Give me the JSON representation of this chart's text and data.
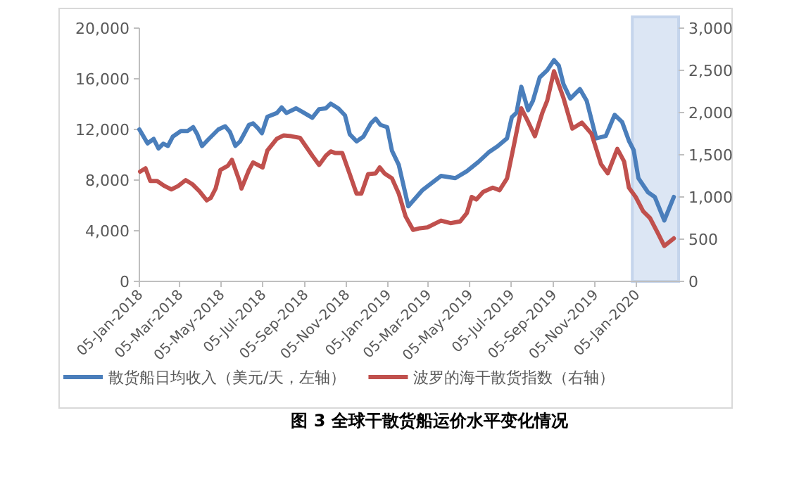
{
  "chart_data": {
    "type": "line",
    "title": "图 3 全球干散货船运价水平变化情况",
    "legend": "bottom",
    "grid": false,
    "marker": "none",
    "line_style": "solid",
    "xlim": [
      "2018-01-05",
      "2020-03-07"
    ],
    "xticks": [
      {
        "value": "2018-01-05",
        "label": "05-Jan-2018"
      },
      {
        "value": "2018-03-05",
        "label": "05-Mar-2018"
      },
      {
        "value": "2018-05-05",
        "label": "05-May-2018"
      },
      {
        "value": "2018-07-05",
        "label": "05-Jul-2018"
      },
      {
        "value": "2018-09-05",
        "label": "05-Sep-2018"
      },
      {
        "value": "2018-11-05",
        "label": "05-Nov-2018"
      },
      {
        "value": "2019-01-05",
        "label": "05-Jan-2019"
      },
      {
        "value": "2019-03-05",
        "label": "05-Mar-2019"
      },
      {
        "value": "2019-05-05",
        "label": "05-May-2019"
      },
      {
        "value": "2019-07-05",
        "label": "05-Jul-2019"
      },
      {
        "value": "2019-09-05",
        "label": "05-Sep-2019"
      },
      {
        "value": "2019-11-05",
        "label": "05-Nov-2019"
      },
      {
        "value": "2020-01-05",
        "label": "05-Jan-2020"
      }
    ],
    "ylim": [
      0,
      20000
    ],
    "yticks": [
      {
        "value": 0,
        "label": "0"
      },
      {
        "value": 4000,
        "label": "4,000"
      },
      {
        "value": 8000,
        "label": "8,000"
      },
      {
        "value": 12000,
        "label": "12,000"
      },
      {
        "value": 16000,
        "label": "16,000"
      },
      {
        "value": 20000,
        "label": "20,000"
      }
    ],
    "y2lim": [
      0,
      3000
    ],
    "y2ticks": [
      {
        "value": 0,
        "label": "0"
      },
      {
        "value": 500,
        "label": "500"
      },
      {
        "value": 1000,
        "label": "1,000"
      },
      {
        "value": 1500,
        "label": "1,500"
      },
      {
        "value": 2000,
        "label": "2,000"
      },
      {
        "value": 2500,
        "label": "2,500"
      },
      {
        "value": 3000,
        "label": "3,000"
      }
    ],
    "bands": [
      {
        "axis": "x",
        "from": "2019-12-30",
        "to": "2020-03-07",
        "color": "#dce6f4"
      }
    ],
    "series": [
      {
        "name": "散货船日均收入（美元/天，左轴）",
        "color": "#4a7ebb",
        "x": [
          "2018-01-05",
          "2018-01-17",
          "2018-01-26",
          "2018-02-02",
          "2018-02-09",
          "2018-02-16",
          "2018-02-23",
          "2018-03-07",
          "2018-03-17",
          "2018-03-25",
          "2018-03-31",
          "2018-04-07",
          "2018-04-17",
          "2018-05-01",
          "2018-05-11",
          "2018-05-18",
          "2018-05-26",
          "2018-06-02",
          "2018-06-15",
          "2018-06-21",
          "2018-06-28",
          "2018-07-04",
          "2018-07-12",
          "2018-07-26",
          "2018-08-02",
          "2018-08-09",
          "2018-08-23",
          "2018-09-02",
          "2018-09-16",
          "2018-09-26",
          "2018-10-06",
          "2018-10-13",
          "2018-10-24",
          "2018-11-03",
          "2018-11-10",
          "2018-11-20",
          "2018-11-30",
          "2018-12-11",
          "2018-12-18",
          "2018-12-25",
          "2019-01-04",
          "2019-01-11",
          "2019-01-21",
          "2019-02-04",
          "2019-02-25",
          "2019-03-24",
          "2019-04-14",
          "2019-05-01",
          "2019-05-18",
          "2019-06-02",
          "2019-06-15",
          "2019-06-29",
          "2019-07-06",
          "2019-07-13",
          "2019-07-20",
          "2019-07-30",
          "2019-08-06",
          "2019-08-16",
          "2019-08-27",
          "2019-09-06",
          "2019-09-13",
          "2019-09-20",
          "2019-09-30",
          "2019-10-14",
          "2019-10-24",
          "2019-11-07",
          "2019-11-21",
          "2019-12-04",
          "2019-12-15",
          "2019-12-25",
          "2020-01-01",
          "2020-01-08",
          "2020-01-22",
          "2020-02-01",
          "2020-02-15",
          "2020-02-29"
        ],
        "values": [
          12000,
          10900,
          11250,
          10500,
          10870,
          10700,
          11430,
          11880,
          11880,
          12180,
          11620,
          10690,
          11250,
          12000,
          12250,
          11800,
          10700,
          11060,
          12360,
          12480,
          12100,
          11700,
          13000,
          13300,
          13740,
          13300,
          13670,
          13370,
          12920,
          13600,
          13670,
          14040,
          13670,
          13110,
          11620,
          11060,
          11430,
          12480,
          12850,
          12360,
          12180,
          10320,
          9200,
          5930,
          7220,
          8330,
          8150,
          8700,
          9440,
          10190,
          10670,
          11300,
          12960,
          13330,
          15370,
          13520,
          14260,
          16110,
          16670,
          17480,
          17040,
          15560,
          14440,
          15190,
          14260,
          11300,
          11480,
          13150,
          12590,
          11110,
          10370,
          8150,
          7040,
          6670,
          4810,
          6670
        ]
      },
      {
        "name": "波罗的海干散货指数（右轴）",
        "color": "#c0504d",
        "axis": "y2",
        "x": [
          "2018-01-06",
          "2018-01-14",
          "2018-01-21",
          "2018-01-31",
          "2018-02-11",
          "2018-02-21",
          "2018-03-03",
          "2018-03-14",
          "2018-03-24",
          "2018-04-03",
          "2018-04-14",
          "2018-04-20",
          "2018-04-27",
          "2018-05-04",
          "2018-05-15",
          "2018-05-21",
          "2018-06-01",
          "2018-06-04",
          "2018-06-15",
          "2018-06-21",
          "2018-07-05",
          "2018-07-12",
          "2018-07-26",
          "2018-08-05",
          "2018-08-16",
          "2018-08-29",
          "2018-09-16",
          "2018-09-26",
          "2018-10-06",
          "2018-10-13",
          "2018-10-20",
          "2018-10-30",
          "2018-11-10",
          "2018-11-20",
          "2018-11-27",
          "2018-12-07",
          "2018-12-18",
          "2018-12-24",
          "2018-12-31",
          "2019-01-11",
          "2019-01-21",
          "2019-01-31",
          "2019-02-11",
          "2019-02-21",
          "2019-03-04",
          "2019-03-24",
          "2019-04-07",
          "2019-04-21",
          "2019-05-01",
          "2019-05-08",
          "2019-05-15",
          "2019-05-25",
          "2019-06-08",
          "2019-06-18",
          "2019-06-29",
          "2019-07-09",
          "2019-07-20",
          "2019-07-30",
          "2019-08-09",
          "2019-08-20",
          "2019-08-27",
          "2019-09-06",
          "2019-09-20",
          "2019-10-03",
          "2019-10-17",
          "2019-10-31",
          "2019-11-14",
          "2019-11-24",
          "2019-12-08",
          "2019-12-18",
          "2019-12-25",
          "2020-01-04",
          "2020-01-15",
          "2020-01-25",
          "2020-02-05",
          "2020-02-15",
          "2020-02-29"
        ],
        "values": [
          1300,
          1340,
          1190,
          1190,
          1130,
          1090,
          1130,
          1200,
          1150,
          1070,
          960,
          990,
          1100,
          1320,
          1370,
          1440,
          1190,
          1100,
          1320,
          1410,
          1350,
          1550,
          1690,
          1730,
          1720,
          1700,
          1490,
          1380,
          1490,
          1540,
          1520,
          1520,
          1270,
          1040,
          1040,
          1270,
          1280,
          1350,
          1280,
          1220,
          1040,
          770,
          610,
          630,
          640,
          720,
          690,
          710,
          810,
          1000,
          970,
          1060,
          1110,
          1080,
          1220,
          1610,
          2050,
          1890,
          1720,
          2000,
          2140,
          2490,
          2170,
          1810,
          1880,
          1750,
          1390,
          1280,
          1570,
          1420,
          1110,
          1000,
          830,
          750,
          580,
          420,
          510
        ]
      }
    ]
  }
}
